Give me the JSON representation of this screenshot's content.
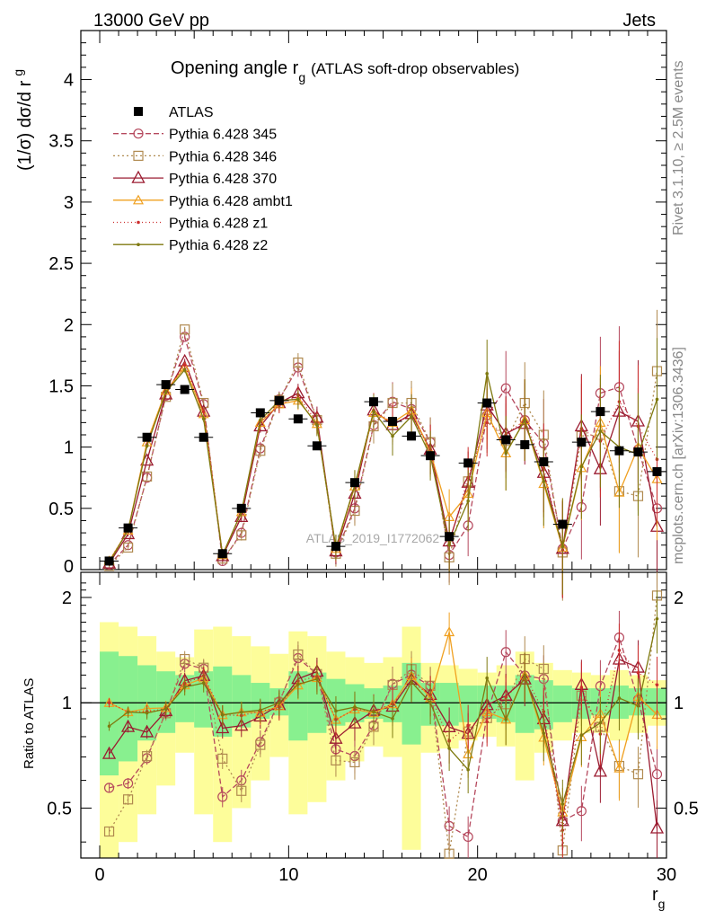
{
  "header": {
    "left": "13000 GeV pp",
    "right": "Jets"
  },
  "side_text": {
    "rivet": "Rivet 3.1.10, ≥ 2.5M events",
    "mcplots": "mcplots.cern.ch [arXiv:1306.3436]"
  },
  "watermark": "ATLAS_2019_I1772062",
  "chart_data": [
    {
      "type": "line",
      "title_main": "Opening angle r",
      "title_sub": "g",
      "title_tail": "(ATLAS soft-drop observables)",
      "ylabel_main": "(1/σ) dσ/d r",
      "ylabel_sub": "g",
      "xlim": [
        -1,
        30
      ],
      "ylim": [
        0,
        4.4
      ],
      "yticks": [
        "0.5",
        "1",
        "1.5",
        "2",
        "2.5",
        "3",
        "3.5",
        "4"
      ],
      "legend_position": "top-left",
      "x": [
        0.5,
        1.5,
        2.5,
        3.5,
        4.5,
        5.5,
        6.5,
        7.5,
        8.5,
        9.5,
        10.5,
        11.5,
        12.5,
        13.5,
        14.5,
        15.5,
        16.5,
        17.5,
        18.5,
        19.5,
        20.5,
        21.5,
        22.5,
        23.5,
        24.5,
        25.5,
        26.5,
        27.5,
        28.5,
        29.5
      ],
      "data": {
        "name": "ATLAS",
        "values": [
          0.07,
          0.34,
          1.08,
          1.51,
          1.47,
          1.08,
          0.13,
          0.5,
          1.28,
          1.38,
          1.23,
          1.01,
          0.19,
          0.71,
          1.37,
          1.21,
          1.09,
          0.93,
          0.27,
          0.87,
          1.36,
          1.06,
          1.02,
          0.88,
          0.37,
          1.04,
          1.29,
          0.97,
          0.96,
          0.8
        ]
      },
      "series": [
        {
          "name": "Pythia 6.428 345",
          "color": "#b5485d",
          "dash": "6,3",
          "marker": "circle",
          "values": [
            0.04,
            0.2,
            0.75,
            1.42,
            1.9,
            1.35,
            0.07,
            0.3,
            0.99,
            1.39,
            1.65,
            1.22,
            0.14,
            0.5,
            1.18,
            1.37,
            1.31,
            1.04,
            0.12,
            0.36,
            1.26,
            1.48,
            1.22,
            1.03,
            0.17,
            0.51,
            1.44,
            1.49,
            0.98,
            0.5
          ]
        },
        {
          "name": "Pythia 6.428 346",
          "color": "#b08a50",
          "dash": "2,3",
          "marker": "square",
          "values": [
            0.03,
            0.18,
            0.76,
            1.41,
            1.96,
            1.36,
            0.09,
            0.28,
            0.97,
            1.38,
            1.69,
            1.22,
            0.13,
            0.48,
            1.17,
            1.36,
            1.36,
            1.04,
            0.1,
            0.72,
            1.23,
            1.05,
            1.36,
            1.1,
            0.14,
            1.09,
            1.1,
            0.64,
            0.6,
            1.62
          ]
        },
        {
          "name": "Pythia 6.428 370",
          "color": "#9b1b30",
          "dash": "",
          "marker": "triangle",
          "values": [
            0.05,
            0.29,
            0.89,
            1.43,
            1.7,
            1.29,
            0.11,
            0.43,
            1.17,
            1.36,
            1.44,
            1.24,
            0.15,
            0.62,
            1.3,
            1.18,
            1.27,
            0.98,
            0.23,
            0.71,
            1.34,
            1.11,
            1.19,
            0.79,
            0.17,
            1.17,
            0.82,
            1.29,
            1.21,
            0.35
          ]
        },
        {
          "name": "Pythia 6.428 ambt1",
          "color": "#f0a020",
          "dash": "",
          "marker": "triangle-small",
          "values": [
            0.07,
            0.32,
            1.04,
            1.46,
            1.65,
            1.27,
            0.12,
            0.47,
            1.2,
            1.35,
            1.38,
            1.19,
            0.17,
            0.68,
            1.28,
            1.2,
            1.3,
            0.96,
            0.43,
            0.62,
            1.28,
            0.95,
            1.22,
            0.7,
            0.18,
            0.83,
            1.2,
            0.63,
            1.0,
            0.74
          ]
        },
        {
          "name": "Pythia 6.428 z1",
          "color": "#cc2e2e",
          "dash": "1,3",
          "marker": "dot",
          "values": [
            0.07,
            0.32,
            1.02,
            1.45,
            1.67,
            1.29,
            0.12,
            0.46,
            1.21,
            1.34,
            1.42,
            1.2,
            0.17,
            0.68,
            1.3,
            1.2,
            1.25,
            0.98,
            0.21,
            0.75,
            1.2,
            1.1,
            1.22,
            0.83,
            0.16,
            1.15,
            1.05,
            1.37,
            1.17,
            0.9
          ]
        },
        {
          "name": "Pythia 6.428 z2",
          "color": "#7f7a10",
          "dash": "",
          "marker": "dot",
          "values": [
            0.06,
            0.32,
            1.01,
            1.45,
            1.63,
            1.23,
            0.12,
            0.47,
            1.22,
            1.38,
            1.39,
            1.18,
            0.18,
            0.69,
            1.29,
            1.09,
            1.25,
            0.93,
            0.2,
            0.56,
            1.6,
            0.95,
            1.22,
            0.72,
            0.19,
            0.84,
            1.13,
            1.0,
            0.94,
            1.39
          ]
        }
      ]
    },
    {
      "type": "line",
      "ylabel": "Ratio to ATLAS",
      "xlabel_main": "r",
      "xlabel_sub": "g",
      "xlim": [
        -1,
        30
      ],
      "xticks": [
        "0",
        "10",
        "20",
        "30"
      ],
      "ylim": [
        0.36,
        2.36
      ],
      "log_y": true,
      "yticks": [
        "0.5",
        "1",
        "2"
      ],
      "band_inner": [
        [
          0.62,
          1.4
        ],
        [
          0.68,
          1.36
        ],
        [
          0.78,
          1.28
        ],
        [
          0.82,
          1.23
        ],
        [
          0.88,
          1.2
        ],
        [
          0.85,
          1.23
        ],
        [
          0.8,
          1.27
        ],
        [
          0.85,
          1.2
        ],
        [
          0.9,
          1.14
        ],
        [
          0.92,
          1.1
        ],
        [
          0.78,
          1.23
        ],
        [
          0.82,
          1.22
        ],
        [
          0.86,
          1.17
        ],
        [
          0.88,
          1.13
        ],
        [
          0.9,
          1.1
        ],
        [
          0.88,
          1.12
        ],
        [
          0.76,
          1.3
        ],
        [
          0.86,
          1.14
        ],
        [
          0.86,
          1.14
        ],
        [
          0.88,
          1.12
        ],
        [
          0.9,
          1.12
        ],
        [
          0.88,
          1.12
        ],
        [
          0.82,
          1.2
        ],
        [
          0.84,
          1.16
        ],
        [
          0.88,
          1.12
        ],
        [
          0.9,
          1.1
        ],
        [
          0.92,
          1.1
        ],
        [
          0.9,
          1.12
        ],
        [
          0.92,
          1.1
        ],
        [
          0.92,
          1.1
        ]
      ],
      "band_outer": [
        [
          0.36,
          1.7
        ],
        [
          0.4,
          1.65
        ],
        [
          0.48,
          1.55
        ],
        [
          0.58,
          1.4
        ],
        [
          0.72,
          1.35
        ],
        [
          0.48,
          1.62
        ],
        [
          0.4,
          1.65
        ],
        [
          0.5,
          1.55
        ],
        [
          0.6,
          1.45
        ],
        [
          0.7,
          1.38
        ],
        [
          0.48,
          1.6
        ],
        [
          0.52,
          1.55
        ],
        [
          0.6,
          1.4
        ],
        [
          0.68,
          1.35
        ],
        [
          0.75,
          1.3
        ],
        [
          0.7,
          1.35
        ],
        [
          0.38,
          1.65
        ],
        [
          0.72,
          1.3
        ],
        [
          0.74,
          1.28
        ],
        [
          0.78,
          1.25
        ],
        [
          0.8,
          1.22
        ],
        [
          0.75,
          1.28
        ],
        [
          0.6,
          1.4
        ],
        [
          0.72,
          1.3
        ],
        [
          0.78,
          1.24
        ],
        [
          0.82,
          1.22
        ],
        [
          0.82,
          1.2
        ],
        [
          0.78,
          1.24
        ],
        [
          0.82,
          1.2
        ],
        [
          0.86,
          1.16
        ]
      ]
    }
  ]
}
